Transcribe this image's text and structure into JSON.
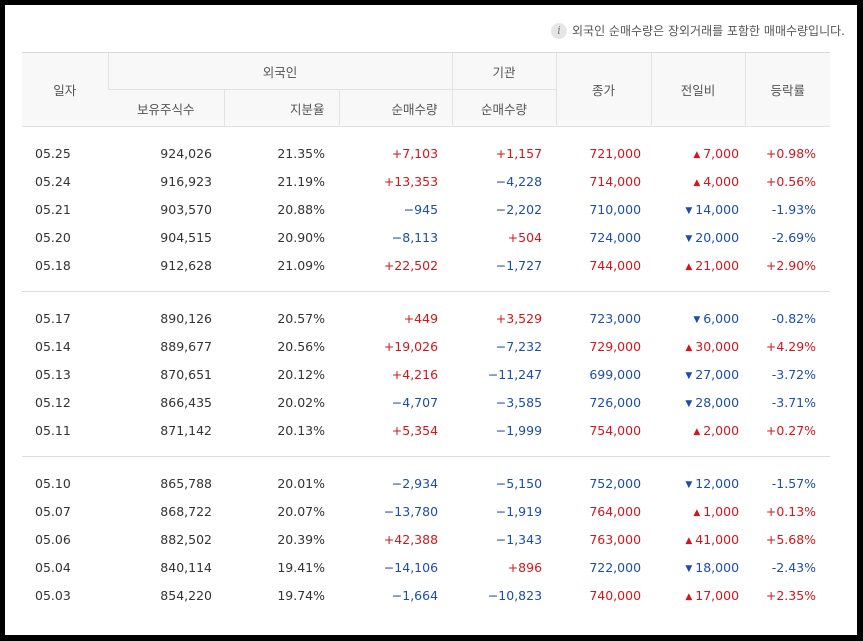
{
  "notice": {
    "icon": "info-icon",
    "text": "외국인 순매수량은 장외거래를 포함한 매매수량입니다."
  },
  "header": {
    "date": "일자",
    "foreign": "외국인",
    "institution": "기관",
    "close": "종가",
    "change": "전일비",
    "rate": "등락률",
    "holdings": "보유주식수",
    "ratio": "지분율",
    "foreign_net": "순매수량",
    "inst_net": "순매수량"
  },
  "groups": [
    [
      {
        "date": "05.25",
        "holdings": "924,026",
        "ratio": "21.35%",
        "foreign_net": "+7,103",
        "inst_net": "+1,157",
        "close": "721,000",
        "dir": "up",
        "change": "7,000",
        "rate": "+0.98%",
        "close_dir": "up"
      },
      {
        "date": "05.24",
        "holdings": "916,923",
        "ratio": "21.19%",
        "foreign_net": "+13,353",
        "inst_net": "−4,228",
        "close": "714,000",
        "dir": "up",
        "change": "4,000",
        "rate": "+0.56%",
        "close_dir": "up"
      },
      {
        "date": "05.21",
        "holdings": "903,570",
        "ratio": "20.88%",
        "foreign_net": "−945",
        "inst_net": "−2,202",
        "close": "710,000",
        "dir": "down",
        "change": "14,000",
        "rate": "-1.93%",
        "close_dir": "down"
      },
      {
        "date": "05.20",
        "holdings": "904,515",
        "ratio": "20.90%",
        "foreign_net": "−8,113",
        "inst_net": "+504",
        "close": "724,000",
        "dir": "down",
        "change": "20,000",
        "rate": "-2.69%",
        "close_dir": "down"
      },
      {
        "date": "05.18",
        "holdings": "912,628",
        "ratio": "21.09%",
        "foreign_net": "+22,502",
        "inst_net": "−1,727",
        "close": "744,000",
        "dir": "up",
        "change": "21,000",
        "rate": "+2.90%",
        "close_dir": "up"
      }
    ],
    [
      {
        "date": "05.17",
        "holdings": "890,126",
        "ratio": "20.57%",
        "foreign_net": "+449",
        "inst_net": "+3,529",
        "close": "723,000",
        "dir": "down",
        "change": "6,000",
        "rate": "-0.82%",
        "close_dir": "down"
      },
      {
        "date": "05.14",
        "holdings": "889,677",
        "ratio": "20.56%",
        "foreign_net": "+19,026",
        "inst_net": "−7,232",
        "close": "729,000",
        "dir": "up",
        "change": "30,000",
        "rate": "+4.29%",
        "close_dir": "up"
      },
      {
        "date": "05.13",
        "holdings": "870,651",
        "ratio": "20.12%",
        "foreign_net": "+4,216",
        "inst_net": "−11,247",
        "close": "699,000",
        "dir": "down",
        "change": "27,000",
        "rate": "-3.72%",
        "close_dir": "down"
      },
      {
        "date": "05.12",
        "holdings": "866,435",
        "ratio": "20.02%",
        "foreign_net": "−4,707",
        "inst_net": "−3,585",
        "close": "726,000",
        "dir": "down",
        "change": "28,000",
        "rate": "-3.71%",
        "close_dir": "down"
      },
      {
        "date": "05.11",
        "holdings": "871,142",
        "ratio": "20.13%",
        "foreign_net": "+5,354",
        "inst_net": "−1,999",
        "close": "754,000",
        "dir": "up",
        "change": "2,000",
        "rate": "+0.27%",
        "close_dir": "up"
      }
    ],
    [
      {
        "date": "05.10",
        "holdings": "865,788",
        "ratio": "20.01%",
        "foreign_net": "−2,934",
        "inst_net": "−5,150",
        "close": "752,000",
        "dir": "down",
        "change": "12,000",
        "rate": "-1.57%",
        "close_dir": "down"
      },
      {
        "date": "05.07",
        "holdings": "868,722",
        "ratio": "20.07%",
        "foreign_net": "−13,780",
        "inst_net": "−1,919",
        "close": "764,000",
        "dir": "up",
        "change": "1,000",
        "rate": "+0.13%",
        "close_dir": "up"
      },
      {
        "date": "05.06",
        "holdings": "882,502",
        "ratio": "20.39%",
        "foreign_net": "+42,388",
        "inst_net": "−1,343",
        "close": "763,000",
        "dir": "up",
        "change": "41,000",
        "rate": "+5.68%",
        "close_dir": "up"
      },
      {
        "date": "05.04",
        "holdings": "840,114",
        "ratio": "19.41%",
        "foreign_net": "−14,106",
        "inst_net": "+896",
        "close": "722,000",
        "dir": "down",
        "change": "18,000",
        "rate": "-2.43%",
        "close_dir": "down"
      },
      {
        "date": "05.03",
        "holdings": "854,220",
        "ratio": "19.74%",
        "foreign_net": "−1,664",
        "inst_net": "−10,823",
        "close": "740,000",
        "dir": "up",
        "change": "17,000",
        "rate": "+2.35%",
        "close_dir": "up"
      }
    ]
  ],
  "colors": {
    "up": "#d3161b",
    "down": "#1d4da8",
    "header_bg": "#f8f8f8"
  },
  "icons": {
    "up": "triangle-up-icon",
    "down": "triangle-down-icon"
  }
}
